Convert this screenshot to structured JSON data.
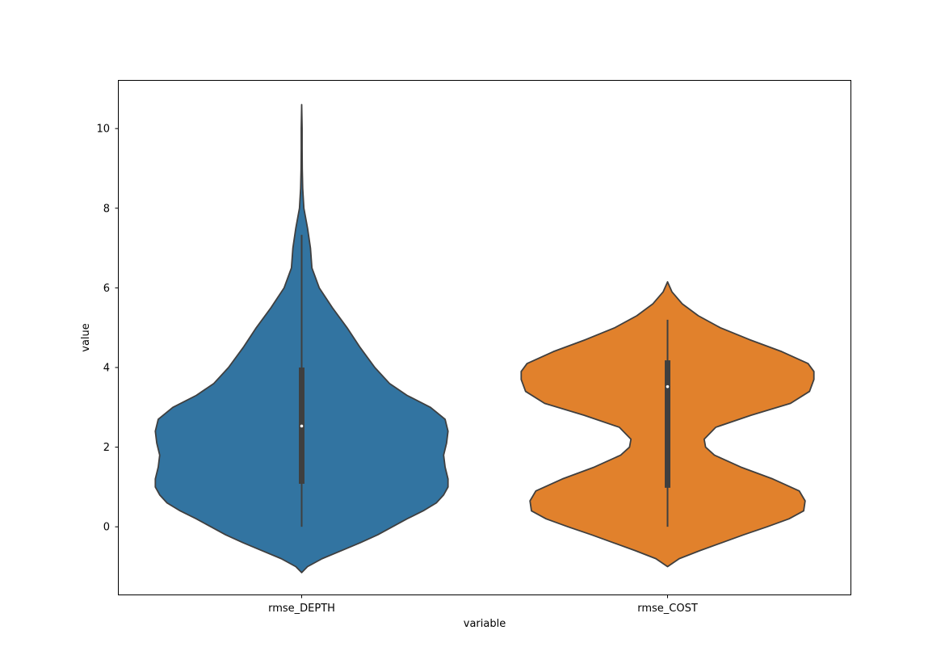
{
  "chart_data": {
    "type": "violin",
    "xlabel": "variable",
    "ylabel": "value",
    "categories": [
      "rmse_DEPTH",
      "rmse_COST"
    ],
    "ylim": [
      -1.7,
      11.2
    ],
    "yticks": [
      0,
      2,
      4,
      6,
      8,
      10
    ],
    "ytick_labels": [
      "0",
      "2",
      "4",
      "6",
      "8",
      "10"
    ],
    "grid": false,
    "legend": "none",
    "series": [
      {
        "category": "rmse_DEPTH",
        "color": "#3274a1",
        "density_profile": [
          [
            -1.15,
            0.0
          ],
          [
            -1.0,
            0.04
          ],
          [
            -0.8,
            0.14
          ],
          [
            -0.6,
            0.27
          ],
          [
            -0.4,
            0.4
          ],
          [
            -0.2,
            0.52
          ],
          [
            0.0,
            0.62
          ],
          [
            0.2,
            0.72
          ],
          [
            0.4,
            0.83
          ],
          [
            0.6,
            0.92
          ],
          [
            0.8,
            0.97
          ],
          [
            1.0,
            1.0
          ],
          [
            1.2,
            1.0
          ],
          [
            1.5,
            0.98
          ],
          [
            1.8,
            0.97
          ],
          [
            2.1,
            0.99
          ],
          [
            2.4,
            1.0
          ],
          [
            2.7,
            0.98
          ],
          [
            3.0,
            0.88
          ],
          [
            3.3,
            0.72
          ],
          [
            3.6,
            0.6
          ],
          [
            4.0,
            0.5
          ],
          [
            4.5,
            0.4
          ],
          [
            5.0,
            0.31
          ],
          [
            5.5,
            0.21
          ],
          [
            6.0,
            0.12
          ],
          [
            6.5,
            0.07
          ],
          [
            7.0,
            0.06
          ],
          [
            7.5,
            0.04
          ],
          [
            8.0,
            0.015
          ],
          [
            8.5,
            0.007
          ],
          [
            9.0,
            0.004
          ],
          [
            9.5,
            0.003
          ],
          [
            10.0,
            0.003
          ],
          [
            10.6,
            0.0
          ]
        ],
        "box": {
          "min": 0.0,
          "q1": 1.08,
          "median": 2.53,
          "q3": 4.0,
          "max": 7.33
        }
      },
      {
        "category": "rmse_COST",
        "color": "#e1812c",
        "density_profile": [
          [
            -1.0,
            0.0
          ],
          [
            -0.8,
            0.08
          ],
          [
            -0.6,
            0.22
          ],
          [
            -0.4,
            0.37
          ],
          [
            -0.2,
            0.52
          ],
          [
            0.0,
            0.68
          ],
          [
            0.2,
            0.83
          ],
          [
            0.4,
            0.93
          ],
          [
            0.65,
            0.94
          ],
          [
            0.9,
            0.9
          ],
          [
            1.2,
            0.72
          ],
          [
            1.5,
            0.5
          ],
          [
            1.8,
            0.32
          ],
          [
            2.0,
            0.26
          ],
          [
            2.2,
            0.25
          ],
          [
            2.5,
            0.33
          ],
          [
            2.8,
            0.57
          ],
          [
            3.1,
            0.84
          ],
          [
            3.4,
            0.97
          ],
          [
            3.7,
            1.0
          ],
          [
            3.9,
            1.0
          ],
          [
            4.1,
            0.96
          ],
          [
            4.4,
            0.78
          ],
          [
            4.7,
            0.56
          ],
          [
            5.0,
            0.36
          ],
          [
            5.3,
            0.21
          ],
          [
            5.6,
            0.1
          ],
          [
            5.9,
            0.03
          ],
          [
            6.15,
            0.0
          ]
        ],
        "box": {
          "min": 0.0,
          "q1": 0.98,
          "median": 3.52,
          "q3": 4.18,
          "max": 5.2
        }
      }
    ]
  }
}
